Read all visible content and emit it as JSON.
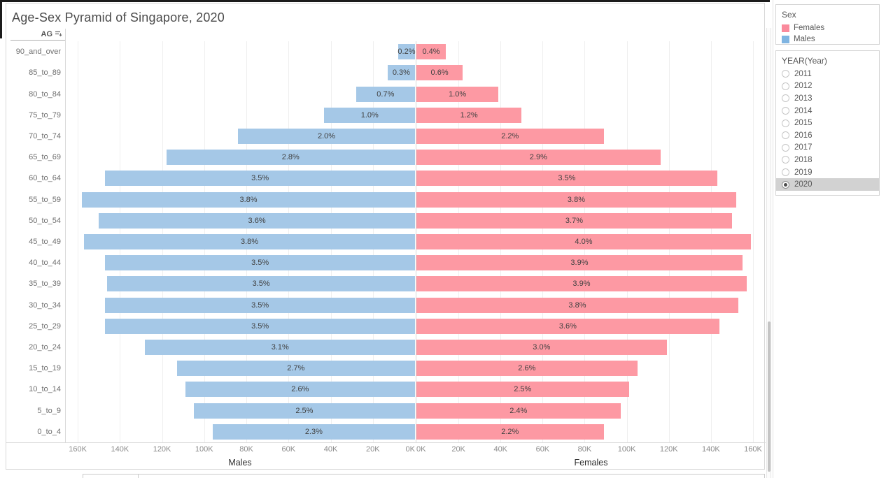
{
  "title": "Age-Sex Pyramid of Singapore, 2020",
  "column_header": {
    "label": "AG",
    "sort_icon": "sort-descending-icon"
  },
  "axis": {
    "left_title": "Males",
    "right_title": "Females",
    "tick_labels_left": [
      "160K",
      "140K",
      "120K",
      "100K",
      "80K",
      "60K",
      "40K",
      "20K",
      "0K"
    ],
    "tick_labels_right": [
      "0K",
      "20K",
      "40K",
      "60K",
      "80K",
      "100K",
      "120K",
      "140K",
      "160K"
    ]
  },
  "chart_data": {
    "type": "bar",
    "variant": "population-pyramid",
    "title": "Age-Sex Pyramid of Singapore, 2020",
    "categories": [
      "90_and_over",
      "85_to_89",
      "80_to_84",
      "75_to_79",
      "70_to_74",
      "65_to_69",
      "60_to_64",
      "55_to_59",
      "50_to_54",
      "45_to_49",
      "40_to_44",
      "35_to_39",
      "30_to_34",
      "25_to_29",
      "20_to_24",
      "15_to_19",
      "10_to_14",
      "5_to_9",
      "0_to_4"
    ],
    "series": [
      {
        "name": "Males",
        "side": "left",
        "color": "#a5c8e7",
        "pct": [
          0.2,
          0.3,
          0.7,
          1.0,
          2.0,
          2.8,
          3.5,
          3.8,
          3.6,
          3.8,
          3.5,
          3.5,
          3.5,
          3.5,
          3.1,
          2.7,
          2.6,
          2.5,
          2.3
        ],
        "labels": [
          "0.2%",
          "0.3%",
          "0.7%",
          "1.0%",
          "2.0%",
          "2.8%",
          "3.5%",
          "3.8%",
          "3.6%",
          "3.8%",
          "3.5%",
          "3.5%",
          "3.5%",
          "3.5%",
          "3.1%",
          "2.7%",
          "2.6%",
          "2.5%",
          "2.3%"
        ],
        "approx_thousands": [
          8,
          13,
          28,
          43,
          84,
          118,
          147,
          158,
          150,
          157,
          147,
          146,
          147,
          147,
          128,
          113,
          109,
          105,
          96
        ]
      },
      {
        "name": "Females",
        "side": "right",
        "color": "#fd99a3",
        "pct": [
          0.4,
          0.6,
          1.0,
          1.2,
          2.2,
          2.9,
          3.5,
          3.8,
          3.7,
          4.0,
          3.9,
          3.9,
          3.8,
          3.6,
          3.0,
          2.6,
          2.5,
          2.4,
          2.2
        ],
        "labels": [
          "0.4%",
          "0.6%",
          "1.0%",
          "1.2%",
          "2.2%",
          "2.9%",
          "3.5%",
          "3.8%",
          "3.7%",
          "4.0%",
          "3.9%",
          "3.9%",
          "3.8%",
          "3.6%",
          "3.0%",
          "2.6%",
          "2.5%",
          "2.4%",
          "2.2%"
        ],
        "approx_thousands": [
          14,
          22,
          39,
          50,
          89,
          116,
          143,
          152,
          150,
          159,
          155,
          157,
          153,
          144,
          119,
          105,
          101,
          97,
          89
        ]
      }
    ],
    "x_axis": {
      "unit": "thousands",
      "tick_step_k": 20,
      "max_k": 166,
      "grid": true
    },
    "legend_position": "right"
  },
  "sidebar": {
    "sex_legend": {
      "title": "Sex",
      "items": [
        {
          "label": "Females",
          "color": "#fa8a9c"
        },
        {
          "label": "Males",
          "color": "#7fb4e1"
        }
      ]
    },
    "year_filter": {
      "title": "YEAR(Year)",
      "options": [
        "2011",
        "2012",
        "2013",
        "2014",
        "2015",
        "2016",
        "2017",
        "2018",
        "2019",
        "2020"
      ],
      "selected": "2020"
    }
  }
}
